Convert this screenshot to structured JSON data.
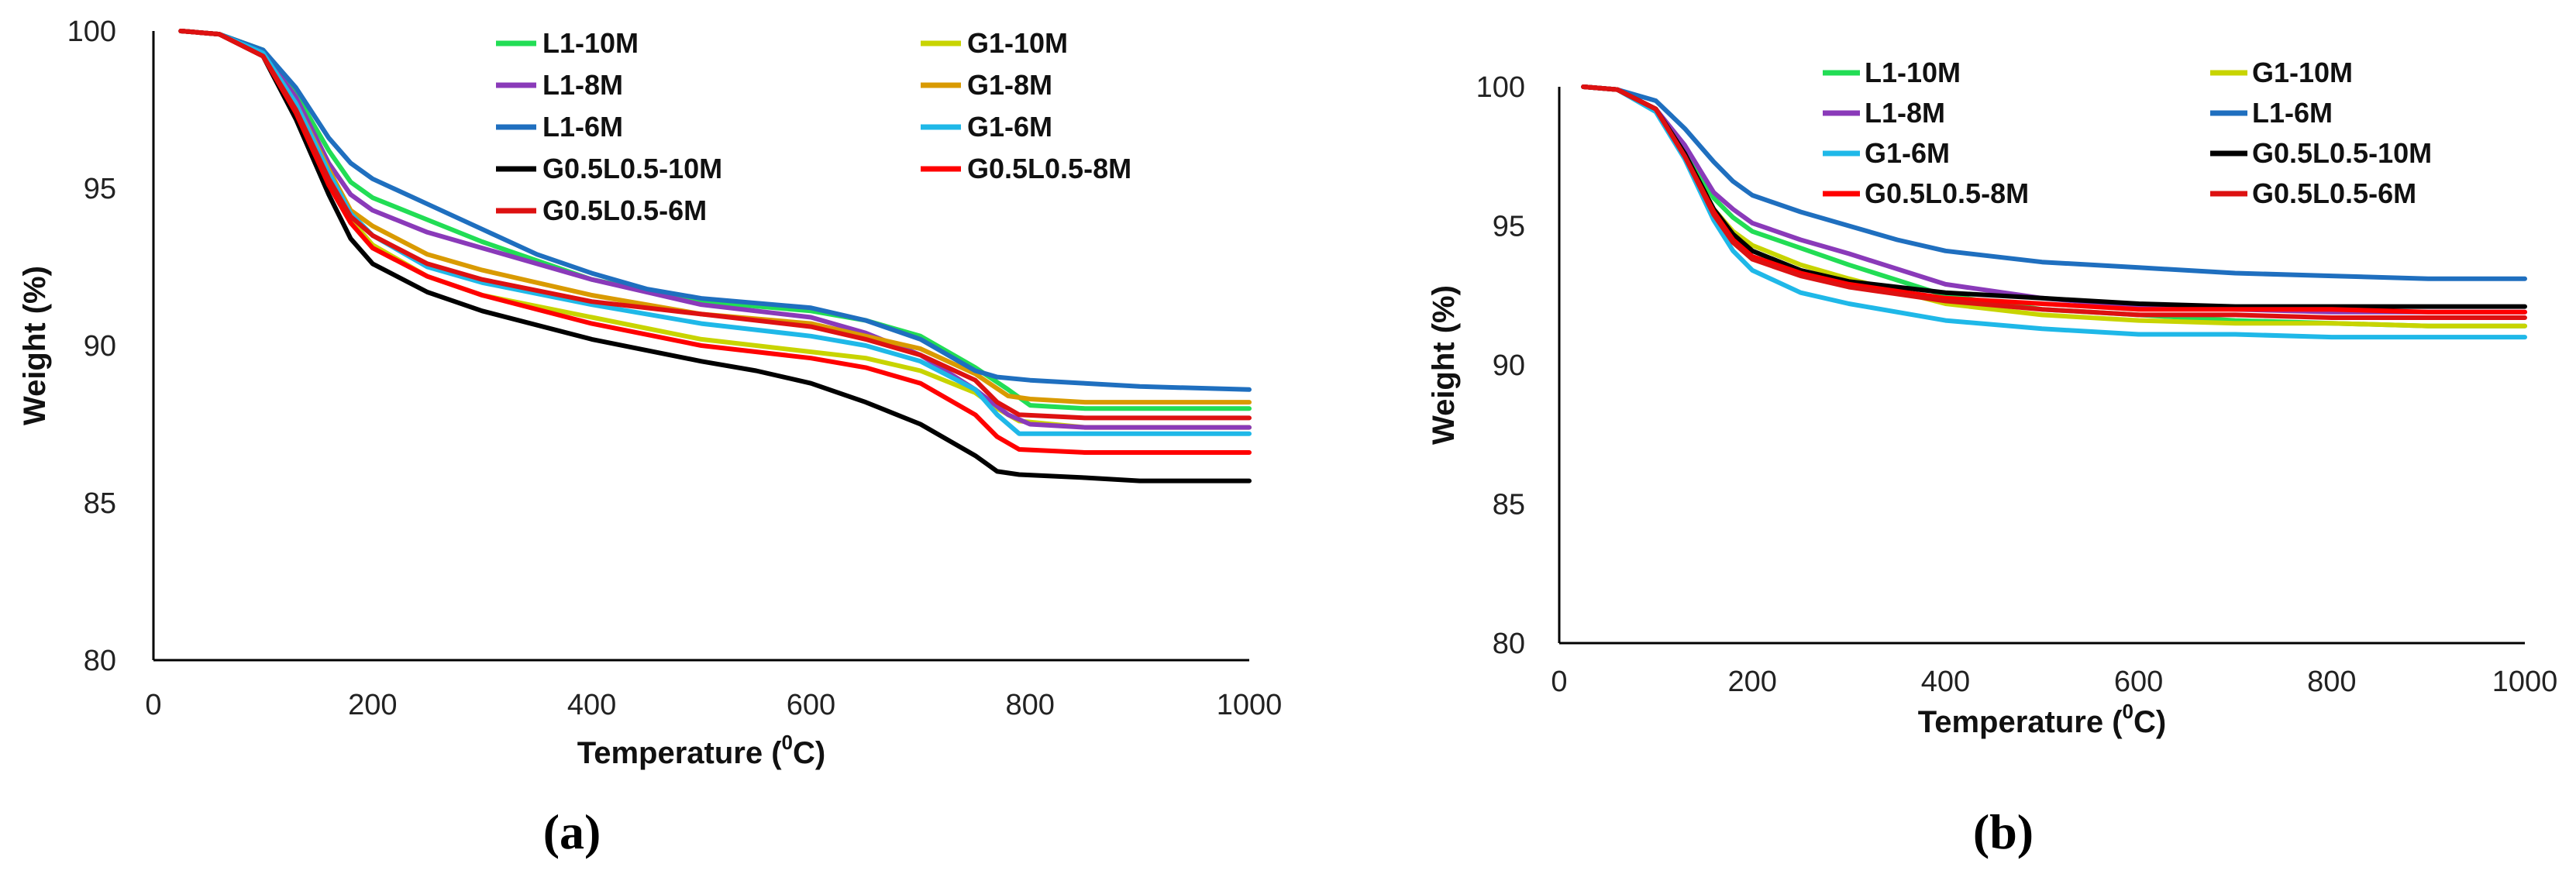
{
  "colors": {
    "L1-10M": "#22dd55",
    "G1-10M": "#c8d400",
    "L1-8M": "#8a3ab9",
    "G1-8M": "#d99a00",
    "L1-6M": "#1f6fbf",
    "G1-6M": "#1fb8e8",
    "G0.5L0.5-10M": "#000000",
    "G0.5L0.5-8M": "#ff0000",
    "G0.5L0.5-6M": "#dd1111"
  },
  "chart_data": [
    {
      "panel_label": "(a)",
      "type": "line",
      "xlabel_main": "Temperature (",
      "xlabel_sup": "0",
      "xlabel_end": "C)",
      "ylabel": "Weight (%)",
      "xlim": [
        0,
        1000
      ],
      "ylim": [
        80,
        100
      ],
      "xticks": [
        "0",
        "200",
        "400",
        "600",
        "800",
        "1000"
      ],
      "yticks": [
        "80",
        "85",
        "90",
        "95",
        "100"
      ],
      "legend": [
        "L1-10M",
        "G1-10M",
        "L1-8M",
        "G1-8M",
        "L1-6M",
        "G1-6M",
        "G0.5L0.5-10M",
        "G0.5L0.5-8M",
        "G0.5L0.5-6M"
      ],
      "series": [
        {
          "name": "L1-10M",
          "x": [
            25,
            60,
            100,
            130,
            160,
            180,
            200,
            250,
            300,
            400,
            500,
            600,
            650,
            700,
            750,
            780,
            800,
            850,
            900,
            1000
          ],
          "y": [
            100,
            99.9,
            99.4,
            98,
            96.2,
            95.2,
            94.7,
            94,
            93.3,
            92.1,
            91.4,
            91.1,
            90.8,
            90.3,
            89.3,
            88.6,
            88.1,
            88,
            88,
            88
          ]
        },
        {
          "name": "G1-10M",
          "x": [
            25,
            60,
            100,
            130,
            160,
            180,
            200,
            250,
            300,
            400,
            500,
            600,
            650,
            700,
            750,
            770,
            790,
            850,
            900,
            1000
          ],
          "y": [
            100,
            99.9,
            99.3,
            97.8,
            95.5,
            94,
            93.2,
            92.2,
            91.6,
            90.9,
            90.2,
            89.8,
            89.6,
            89.2,
            88.5,
            88,
            87.6,
            87.4,
            87.4,
            87.4
          ]
        },
        {
          "name": "L1-8M",
          "x": [
            25,
            60,
            100,
            130,
            160,
            180,
            200,
            250,
            300,
            400,
            500,
            600,
            650,
            700,
            750,
            780,
            800,
            850,
            900,
            1000
          ],
          "y": [
            100,
            99.9,
            99.3,
            97.9,
            95.8,
            94.8,
            94.3,
            93.6,
            93.1,
            92.1,
            91.3,
            90.9,
            90.4,
            89.7,
            88.6,
            87.8,
            87.5,
            87.4,
            87.4,
            87.4
          ]
        },
        {
          "name": "G1-8M",
          "x": [
            25,
            60,
            100,
            130,
            160,
            180,
            200,
            250,
            300,
            400,
            500,
            600,
            650,
            700,
            750,
            780,
            800,
            850,
            900,
            1000
          ],
          "y": [
            100,
            99.9,
            99.3,
            97.7,
            95.6,
            94.3,
            93.8,
            92.9,
            92.4,
            91.6,
            91,
            90.7,
            90.3,
            89.9,
            89.1,
            88.4,
            88.3,
            88.2,
            88.2,
            88.2
          ]
        },
        {
          "name": "L1-6M",
          "x": [
            25,
            60,
            100,
            130,
            160,
            180,
            200,
            250,
            300,
            350,
            400,
            450,
            500,
            600,
            650,
            700,
            750,
            770,
            800,
            850,
            900,
            1000
          ],
          "y": [
            100,
            99.9,
            99.4,
            98.2,
            96.6,
            95.8,
            95.3,
            94.5,
            93.7,
            92.9,
            92.3,
            91.8,
            91.5,
            91.2,
            90.8,
            90.2,
            89.2,
            89,
            88.9,
            88.8,
            88.7,
            88.6
          ]
        },
        {
          "name": "G1-6M",
          "x": [
            25,
            60,
            100,
            130,
            160,
            180,
            200,
            250,
            300,
            400,
            500,
            600,
            650,
            700,
            750,
            770,
            790,
            850,
            900,
            1000
          ],
          "y": [
            100,
            99.9,
            99.3,
            97.7,
            95.5,
            94.2,
            93.5,
            92.5,
            92,
            91.3,
            90.7,
            90.3,
            90,
            89.5,
            88.6,
            87.8,
            87.2,
            87.2,
            87.2,
            87.2
          ]
        },
        {
          "name": "G0.5L0.5-10M",
          "x": [
            25,
            60,
            100,
            130,
            160,
            180,
            200,
            250,
            300,
            400,
            500,
            550,
            600,
            650,
            700,
            750,
            770,
            790,
            850,
            900,
            1000
          ],
          "y": [
            100,
            99.9,
            99.2,
            97.2,
            94.8,
            93.4,
            92.6,
            91.7,
            91.1,
            90.2,
            89.5,
            89.2,
            88.8,
            88.2,
            87.5,
            86.5,
            86,
            85.9,
            85.8,
            85.7,
            85.7
          ]
        },
        {
          "name": "G0.5L0.5-8M",
          "x": [
            25,
            60,
            100,
            130,
            160,
            180,
            200,
            250,
            300,
            400,
            500,
            600,
            650,
            700,
            750,
            770,
            790,
            850,
            900,
            1000
          ],
          "y": [
            100,
            99.9,
            99.2,
            97.4,
            95.1,
            93.9,
            93.1,
            92.2,
            91.6,
            90.7,
            90,
            89.6,
            89.3,
            88.8,
            87.8,
            87.1,
            86.7,
            86.6,
            86.6,
            86.6
          ]
        },
        {
          "name": "G0.5L0.5-6M",
          "x": [
            25,
            60,
            100,
            130,
            160,
            180,
            200,
            250,
            300,
            400,
            500,
            600,
            650,
            700,
            750,
            770,
            790,
            850,
            900,
            1000
          ],
          "y": [
            100,
            99.9,
            99.2,
            97.5,
            95.3,
            94.1,
            93.5,
            92.6,
            92.1,
            91.4,
            91,
            90.6,
            90.2,
            89.7,
            88.9,
            88.2,
            87.8,
            87.7,
            87.7,
            87.7
          ]
        }
      ]
    },
    {
      "panel_label": "(b)",
      "type": "line",
      "xlabel_main": "Temperature (",
      "xlabel_sup": "0",
      "xlabel_end": "C)",
      "ylabel": "Weight (%)",
      "xlim": [
        0,
        1000
      ],
      "ylim": [
        80,
        100
      ],
      "xticks": [
        "0",
        "200",
        "400",
        "600",
        "800",
        "1000"
      ],
      "yticks": [
        "80",
        "85",
        "90",
        "95",
        "100"
      ],
      "legend": [
        "L1-10M",
        "G1-10M",
        "L1-8M",
        "L1-6M",
        "G1-6M",
        "G0.5L0.5-10M",
        "G0.5L0.5-8M",
        "G0.5L0.5-6M"
      ],
      "series": [
        {
          "name": "L1-10M",
          "x": [
            25,
            60,
            100,
            130,
            160,
            180,
            200,
            250,
            300,
            400,
            500,
            600,
            700,
            800,
            900,
            1000
          ],
          "y": [
            100,
            99.9,
            99.2,
            97.7,
            96,
            95.3,
            94.8,
            94.2,
            93.6,
            92.5,
            92,
            91.8,
            91.6,
            91.5,
            91.4,
            91.4
          ]
        },
        {
          "name": "G1-10M",
          "x": [
            25,
            60,
            100,
            130,
            160,
            180,
            200,
            250,
            300,
            400,
            500,
            600,
            700,
            800,
            900,
            1000
          ],
          "y": [
            100,
            99.9,
            99.2,
            97.6,
            95.6,
            94.8,
            94.3,
            93.6,
            93.1,
            92.2,
            91.8,
            91.6,
            91.5,
            91.5,
            91.4,
            91.4
          ]
        },
        {
          "name": "L1-8M",
          "x": [
            25,
            60,
            100,
            130,
            160,
            180,
            200,
            250,
            300,
            400,
            500,
            600,
            700,
            800,
            900,
            1000
          ],
          "y": [
            100,
            99.9,
            99.2,
            97.9,
            96.2,
            95.6,
            95.1,
            94.5,
            94,
            92.9,
            92.4,
            92.1,
            92,
            91.9,
            91.9,
            91.9
          ]
        },
        {
          "name": "L1-6M",
          "x": [
            25,
            60,
            100,
            130,
            160,
            180,
            200,
            250,
            300,
            350,
            400,
            500,
            600,
            700,
            800,
            900,
            1000
          ],
          "y": [
            100,
            99.9,
            99.5,
            98.5,
            97.3,
            96.6,
            96.1,
            95.5,
            95,
            94.5,
            94.1,
            93.7,
            93.5,
            93.3,
            93.2,
            93.1,
            93.1
          ]
        },
        {
          "name": "G1-6M",
          "x": [
            25,
            60,
            100,
            130,
            160,
            180,
            200,
            250,
            300,
            400,
            500,
            600,
            700,
            800,
            900,
            1000
          ],
          "y": [
            100,
            99.9,
            99.1,
            97.4,
            95.2,
            94.1,
            93.4,
            92.6,
            92.2,
            91.6,
            91.3,
            91.1,
            91.1,
            91,
            91,
            91
          ]
        },
        {
          "name": "G0.5L0.5-10M",
          "x": [
            25,
            60,
            100,
            130,
            160,
            180,
            200,
            250,
            300,
            400,
            500,
            600,
            700,
            800,
            900,
            1000
          ],
          "y": [
            100,
            99.9,
            99.2,
            97.6,
            95.6,
            94.7,
            94.1,
            93.4,
            93,
            92.6,
            92.4,
            92.2,
            92.1,
            92.1,
            92.1,
            92.1
          ]
        },
        {
          "name": "G0.5L0.5-8M",
          "x": [
            25,
            60,
            100,
            130,
            160,
            180,
            200,
            250,
            300,
            400,
            500,
            600,
            700,
            800,
            900,
            1000
          ],
          "y": [
            100,
            99.9,
            99.2,
            97.5,
            95.5,
            94.5,
            93.9,
            93.3,
            92.9,
            92.4,
            92.2,
            92,
            92,
            92,
            91.9,
            91.9
          ]
        },
        {
          "name": "G0.5L0.5-6M",
          "x": [
            25,
            60,
            100,
            130,
            160,
            180,
            200,
            250,
            300,
            400,
            500,
            600,
            700,
            800,
            900,
            1000
          ],
          "y": [
            100,
            99.9,
            99.2,
            97.5,
            95.4,
            94.4,
            93.8,
            93.2,
            92.8,
            92.3,
            92,
            91.8,
            91.8,
            91.7,
            91.7,
            91.7
          ]
        }
      ]
    }
  ]
}
